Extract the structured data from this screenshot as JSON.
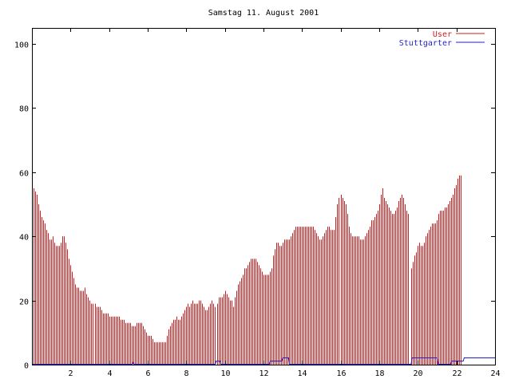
{
  "chart_data": {
    "type": "bar",
    "title": "Samstag 11. August 2001",
    "xlabel": "",
    "ylabel": "",
    "xlim": [
      0,
      24
    ],
    "ylim": [
      0,
      105
    ],
    "xticks": [
      2,
      4,
      6,
      8,
      10,
      12,
      14,
      16,
      18,
      20,
      22,
      24
    ],
    "yticks": [
      0,
      20,
      40,
      60,
      80,
      100
    ],
    "legend_position": "top-right",
    "grid": false,
    "series": [
      {
        "name": "User",
        "style": "impulses",
        "color": "#d21e1e",
        "step_hours": 0.0833,
        "values": [
          56,
          55,
          54,
          53,
          50,
          48,
          46,
          45,
          44,
          42,
          41,
          39,
          39,
          40,
          38,
          37,
          37,
          37,
          38,
          40,
          40,
          38,
          36,
          33,
          31,
          29,
          27,
          25,
          24,
          24,
          23,
          23,
          23,
          24,
          22,
          21,
          20,
          19,
          19,
          19,
          18,
          18,
          18,
          17,
          16,
          16,
          16,
          16,
          15,
          15,
          15,
          15,
          15,
          15,
          15,
          14,
          14,
          14,
          13,
          13,
          13,
          13,
          12,
          12,
          12,
          13,
          13,
          13,
          13,
          12,
          11,
          10,
          9,
          9,
          9,
          8,
          7,
          7,
          7,
          7,
          7,
          7,
          7,
          7,
          9,
          11,
          12,
          13,
          14,
          14,
          15,
          14,
          14,
          15,
          16,
          17,
          18,
          19,
          18,
          19,
          20,
          19,
          19,
          19,
          20,
          20,
          19,
          18,
          17,
          17,
          18,
          19,
          20,
          19,
          18,
          19,
          21,
          21,
          21,
          22,
          23,
          22,
          21,
          20,
          20,
          18,
          21,
          23,
          25,
          26,
          27,
          28,
          30,
          30,
          31,
          32,
          33,
          33,
          33,
          33,
          32,
          31,
          30,
          29,
          28,
          28,
          28,
          28,
          29,
          30,
          34,
          36,
          38,
          38,
          37,
          37,
          38,
          39,
          39,
          39,
          39,
          40,
          41,
          42,
          43,
          43,
          43,
          43,
          43,
          43,
          43,
          43,
          43,
          43,
          43,
          43,
          42,
          41,
          40,
          39,
          39,
          40,
          41,
          42,
          43,
          43,
          42,
          42,
          42,
          46,
          50,
          52,
          53,
          52,
          51,
          50,
          47,
          43,
          41,
          40,
          40,
          40,
          40,
          40,
          39,
          39,
          39,
          40,
          41,
          42,
          43,
          45,
          45,
          46,
          47,
          48,
          50,
          53,
          55,
          52,
          51,
          50,
          49,
          48,
          47,
          47,
          48,
          49,
          51,
          52,
          53,
          52,
          50,
          48,
          47,
          0,
          30,
          32,
          34,
          35,
          37,
          38,
          37,
          37,
          38,
          40,
          41,
          42,
          43,
          44,
          44,
          44,
          45,
          47,
          48,
          48,
          48,
          49,
          49,
          50,
          51,
          52,
          53,
          55,
          56,
          58,
          59,
          59
        ]
      },
      {
        "name": "Stuttgarter",
        "style": "line",
        "color": "#1f1fd0",
        "points": [
          [
            0,
            0
          ],
          [
            5.2,
            0
          ],
          [
            5.25,
            0.6
          ],
          [
            5.3,
            0
          ],
          [
            9.5,
            0
          ],
          [
            9.55,
            1
          ],
          [
            9.75,
            1
          ],
          [
            9.8,
            0
          ],
          [
            12.3,
            0
          ],
          [
            12.35,
            1
          ],
          [
            12.95,
            1
          ],
          [
            13,
            2
          ],
          [
            13.3,
            2
          ],
          [
            13.35,
            0
          ],
          [
            19.65,
            0
          ],
          [
            19.7,
            2
          ],
          [
            21,
            2
          ],
          [
            21.05,
            0
          ],
          [
            21.7,
            0
          ],
          [
            21.75,
            1
          ],
          [
            22.35,
            1
          ],
          [
            22.4,
            2
          ],
          [
            24,
            2
          ]
        ]
      }
    ]
  }
}
